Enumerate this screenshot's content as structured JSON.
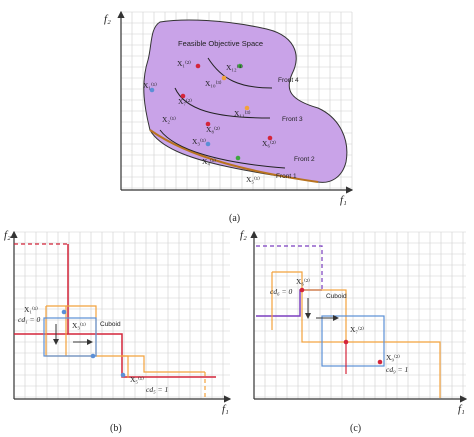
{
  "panel_a": {
    "caption": "(a)",
    "axis_x": "f₁",
    "axis_y": "f₂",
    "region_label": "Feasible Objective Space",
    "fronts": [
      "Front 4",
      "Front 3",
      "Front 2",
      "Front 1"
    ],
    "points": {
      "p1": "X₁⁽²⁾",
      "p2": "X₁₂⁽⁴⁾",
      "p3": "X₁⁽¹⁾",
      "p4": "X₁₀⁽³⁾",
      "p5": "X₇⁽²⁾",
      "p6": "X₁₁⁽³⁾",
      "p7": "X₂⁽¹⁾",
      "p8": "X₈⁽²⁾",
      "p9": "X₃⁽¹⁾",
      "p10": "X₆⁽²⁾",
      "p11": "X₄⁽¹⁾",
      "p12": "X₅⁽¹⁾"
    }
  },
  "panel_b": {
    "caption": "(b)",
    "axis_x": "f₁",
    "axis_y": "f₂",
    "cuboid_label": "Cuboid",
    "pt_top": "X₁⁽¹⁾",
    "cd_top": "cd₁ = 0",
    "pt_mid": "X₃⁽¹⁾",
    "pt_bottom": "X₅⁽¹⁾",
    "cd_bottom": "cd₅ = 1"
  },
  "panel_c": {
    "caption": "(c)",
    "axis_x": "f₁",
    "axis_y": "f₂",
    "cuboid_label": "Cuboid",
    "pt_top": "X₆⁽²⁾",
    "cd_top": "cd₆ = 0",
    "pt_mid": "X₇⁽²⁾",
    "pt_bottom": "X₉⁽²⁾",
    "cd_bottom": "cd₉ = 1"
  },
  "colors": {
    "region": "#c9a3e8",
    "red": "#d4253a",
    "orange": "#f2a23c",
    "blue": "#5b8fd6",
    "purple": "#7b3fbf",
    "green": "#3ea640"
  }
}
